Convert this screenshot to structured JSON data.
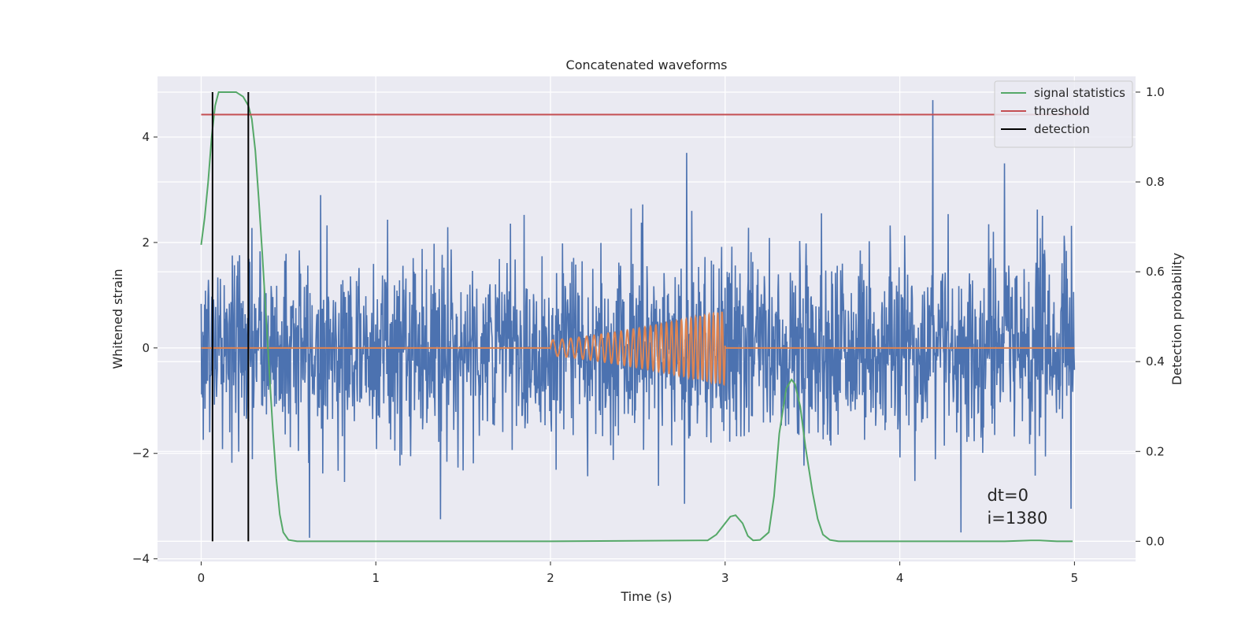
{
  "chart_data": {
    "type": "line",
    "title": "Concatenated waveforms",
    "xlabel": "Time (s)",
    "ylabel_left": "Whitened strain",
    "ylabel_right": "Detection probability",
    "xlim": [
      -0.25,
      5.35
    ],
    "ylim_left": [
      -4.05,
      5.15
    ],
    "ylim_right": [
      -0.045,
      1.035
    ],
    "xticks": [
      0,
      1,
      2,
      3,
      4,
      5
    ],
    "xtick_labels": [
      "0",
      "1",
      "2",
      "3",
      "4",
      "5"
    ],
    "yticks_left": [
      -4,
      -2,
      0,
      2,
      4
    ],
    "ytick_labels_left": [
      "−4",
      "−2",
      "0",
      "2",
      "4"
    ],
    "yticks_right": [
      0.0,
      0.2,
      0.4,
      0.6,
      0.8,
      1.0
    ],
    "ytick_labels_right": [
      "0.0",
      "0.2",
      "0.4",
      "0.6",
      "0.8",
      "1.0"
    ],
    "grid": true,
    "legend_position": "upper-right",
    "background_color": "#eaeaf2",
    "series": [
      {
        "name": "",
        "axis": "left",
        "color": "#4c72b0",
        "kind": "whitened-noise",
        "x_range": [
          0,
          5
        ],
        "amplitude_std": 0.9,
        "notable_peaks": [
          [
            4.19,
            4.7
          ],
          [
            2.78,
            3.7
          ],
          [
            4.6,
            3.5
          ],
          [
            0.62,
            -3.6
          ],
          [
            4.35,
            -3.5
          ],
          [
            4.98,
            -3.05
          ],
          [
            1.37,
            -3.25
          ]
        ]
      },
      {
        "name": "",
        "axis": "left",
        "color": "#dd8452",
        "kind": "chirp",
        "x_range": [
          2.0,
          3.0
        ],
        "amplitude_range": [
          0.15,
          0.7
        ],
        "frequency_range_hz": [
          18,
          42
        ],
        "baseline": 0
      },
      {
        "name": "signal statistics",
        "axis": "right",
        "color": "#55a868",
        "x": [
          0,
          0.02,
          0.04,
          0.06,
          0.08,
          0.1,
          0.12,
          0.15,
          0.2,
          0.24,
          0.27,
          0.29,
          0.31,
          0.33,
          0.35,
          0.37,
          0.39,
          0.41,
          0.43,
          0.45,
          0.47,
          0.5,
          0.55,
          1.0,
          2.0,
          2.9,
          2.95,
          3.0,
          3.03,
          3.06,
          3.1,
          3.13,
          3.16,
          3.2,
          3.25,
          3.28,
          3.31,
          3.35,
          3.38,
          3.4,
          3.43,
          3.46,
          3.5,
          3.53,
          3.56,
          3.6,
          3.65,
          4.0,
          4.6,
          4.75,
          4.8,
          4.9,
          4.99
        ],
        "y": [
          0.66,
          0.72,
          0.8,
          0.9,
          0.97,
          1.0,
          1.0,
          1.0,
          1.0,
          0.99,
          0.97,
          0.94,
          0.87,
          0.76,
          0.64,
          0.51,
          0.38,
          0.25,
          0.14,
          0.06,
          0.02,
          0.003,
          0.0,
          0.0,
          0.0,
          0.002,
          0.015,
          0.04,
          0.055,
          0.058,
          0.04,
          0.012,
          0.002,
          0.003,
          0.02,
          0.1,
          0.24,
          0.34,
          0.36,
          0.35,
          0.3,
          0.21,
          0.11,
          0.05,
          0.015,
          0.003,
          0.0,
          0.0,
          0.0,
          0.002,
          0.002,
          0.0,
          0.0
        ]
      },
      {
        "name": "threshold",
        "axis": "right",
        "color": "#c44e52",
        "x": [
          0,
          5.05
        ],
        "y": [
          0.95,
          0.95
        ]
      },
      {
        "name": "detection",
        "axis": "right",
        "color": "#000000",
        "kind": "vertical-lines",
        "x": [
          0.065,
          0.27
        ],
        "y_range": [
          0.0,
          1.0
        ]
      }
    ],
    "annotations": [
      {
        "text": "dt=0",
        "x": 4.5,
        "y": -2.9
      },
      {
        "text": "i=1380",
        "x": 4.5,
        "y": -3.33
      }
    ]
  }
}
